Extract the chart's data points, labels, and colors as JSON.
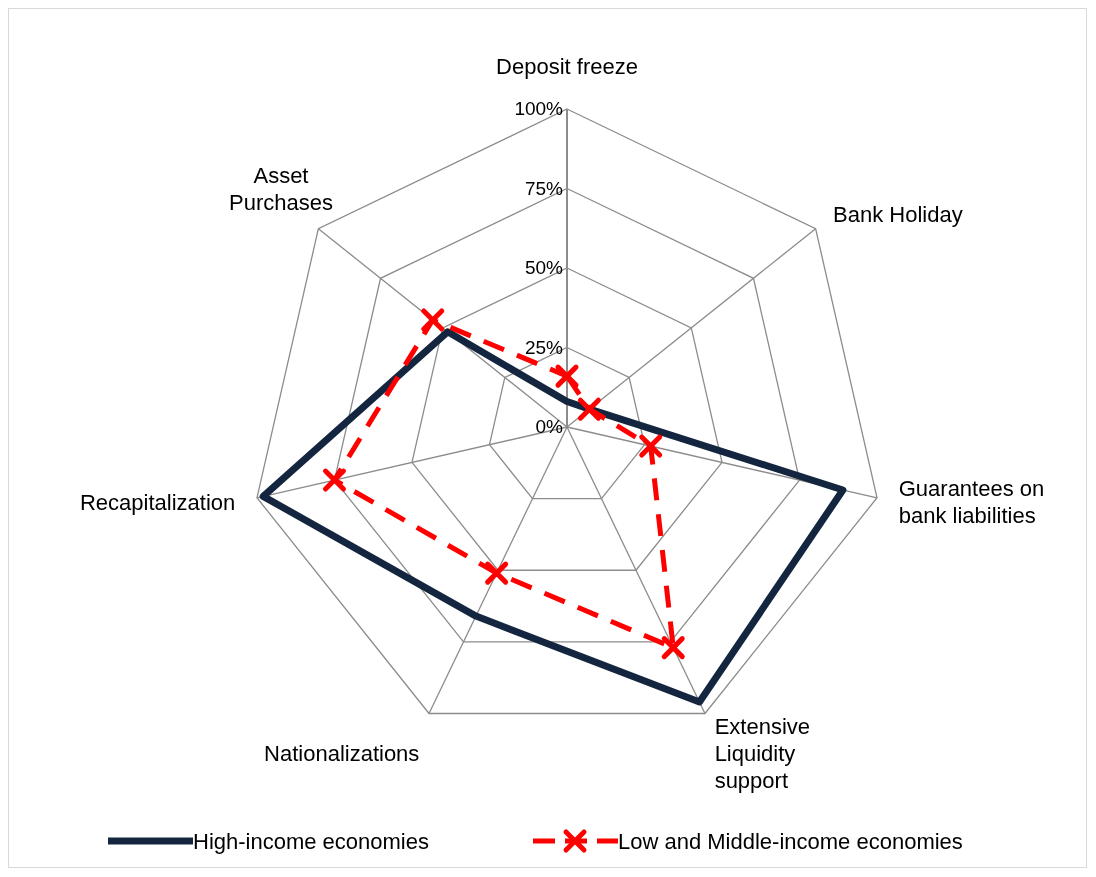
{
  "chart_data": {
    "type": "radar",
    "categories": [
      "Deposit freeze",
      "Bank Holiday",
      "Guarantees on bank liabilities",
      "Extensive Liquidity support",
      "Nationalizations",
      "Recapitalization",
      "Asset Purchases"
    ],
    "ylim": [
      0,
      100
    ],
    "yticks": [
      {
        "value": 0,
        "label": "0%"
      },
      {
        "value": 25,
        "label": "25%"
      },
      {
        "value": 50,
        "label": "50%"
      },
      {
        "value": 75,
        "label": "75%"
      },
      {
        "value": 100,
        "label": "100%"
      }
    ],
    "grid": true,
    "legend": "bottom",
    "series": [
      {
        "name": "High-income economies",
        "color": "#14263f",
        "values": [
          8,
          9,
          89,
          96,
          66,
          98,
          48
        ],
        "marker": "none",
        "line_style": "solid"
      },
      {
        "name": "Low and Middle-income economies",
        "color": "#ff0000",
        "values": [
          16,
          9,
          27,
          77,
          51,
          75,
          54
        ],
        "marker": "cross",
        "line_style": "dashed"
      }
    ]
  }
}
